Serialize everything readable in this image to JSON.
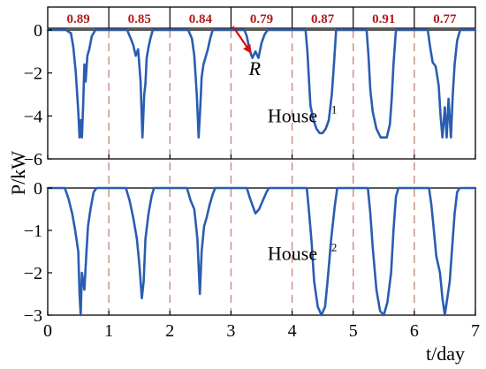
{
  "chart_data": {
    "type": "line",
    "ylabel": "P/kW",
    "xlabel": "t/day",
    "x_ticks": [
      0,
      1,
      2,
      3,
      4,
      5,
      6,
      7
    ],
    "xlim": [
      0,
      7
    ],
    "day_boundaries": [
      1,
      2,
      3,
      4,
      5,
      6
    ],
    "line_color": "#2a5db0",
    "divider_color": "#c98a80",
    "value_color": "#b21c1c",
    "day_values": [
      "0.89",
      "0.85",
      "0.84",
      "0.79",
      "0.87",
      "0.91",
      "0.77"
    ],
    "annotation": {
      "label": "R",
      "day": 3.35,
      "value": -1.2
    },
    "panels": [
      {
        "name": "House",
        "superscript": "1",
        "ylim": [
          -6,
          0
        ],
        "y_ticks": [
          0,
          -2,
          -4,
          -6
        ],
        "y_tick_labels": [
          "0",
          "−2",
          "−4",
          "−6"
        ],
        "label_pos": [
          3.6,
          -4.3
        ],
        "series": [
          [
            0.0,
            0
          ],
          [
            0.3,
            0
          ],
          [
            0.38,
            -0.15
          ],
          [
            0.42,
            -0.8
          ],
          [
            0.46,
            -2.0
          ],
          [
            0.5,
            -3.8
          ],
          [
            0.52,
            -5.0
          ],
          [
            0.54,
            -4.2
          ],
          [
            0.56,
            -5.0
          ],
          [
            0.58,
            -3.5
          ],
          [
            0.6,
            -1.6
          ],
          [
            0.62,
            -2.4
          ],
          [
            0.65,
            -1.2
          ],
          [
            0.68,
            -0.9
          ],
          [
            0.72,
            -0.3
          ],
          [
            0.78,
            0
          ],
          [
            1.3,
            0
          ],
          [
            1.36,
            -0.4
          ],
          [
            1.4,
            -0.7
          ],
          [
            1.44,
            -1.2
          ],
          [
            1.48,
            -0.9
          ],
          [
            1.52,
            -2.4
          ],
          [
            1.55,
            -5.0
          ],
          [
            1.58,
            -3.0
          ],
          [
            1.6,
            -2.5
          ],
          [
            1.62,
            -1.3
          ],
          [
            1.65,
            -0.8
          ],
          [
            1.68,
            -0.4
          ],
          [
            1.72,
            0
          ],
          [
            2.3,
            0
          ],
          [
            2.36,
            -0.4
          ],
          [
            2.4,
            -1.2
          ],
          [
            2.44,
            -3.0
          ],
          [
            2.47,
            -5.0
          ],
          [
            2.5,
            -3.4
          ],
          [
            2.52,
            -2.2
          ],
          [
            2.55,
            -1.6
          ],
          [
            2.58,
            -1.3
          ],
          [
            2.62,
            -0.9
          ],
          [
            2.66,
            -0.4
          ],
          [
            2.7,
            0
          ],
          [
            3.22,
            0
          ],
          [
            3.26,
            -0.3
          ],
          [
            3.3,
            -0.9
          ],
          [
            3.35,
            -1.3
          ],
          [
            3.4,
            -1.0
          ],
          [
            3.45,
            -1.3
          ],
          [
            3.5,
            -0.6
          ],
          [
            3.55,
            -0.2
          ],
          [
            3.6,
            0
          ],
          [
            4.22,
            0
          ],
          [
            4.25,
            -1.0
          ],
          [
            4.28,
            -2.5
          ],
          [
            4.3,
            -3.5
          ],
          [
            4.35,
            -4.2
          ],
          [
            4.4,
            -4.6
          ],
          [
            4.45,
            -4.8
          ],
          [
            4.5,
            -4.8
          ],
          [
            4.55,
            -4.6
          ],
          [
            4.6,
            -4.2
          ],
          [
            4.65,
            -3.0
          ],
          [
            4.68,
            -1.8
          ],
          [
            4.72,
            0
          ],
          [
            5.22,
            0
          ],
          [
            5.25,
            -1.2
          ],
          [
            5.28,
            -2.8
          ],
          [
            5.32,
            -3.8
          ],
          [
            5.38,
            -4.6
          ],
          [
            5.45,
            -5.0
          ],
          [
            5.55,
            -5.0
          ],
          [
            5.6,
            -4.4
          ],
          [
            5.63,
            -3.2
          ],
          [
            5.66,
            -1.6
          ],
          [
            5.7,
            0
          ],
          [
            6.22,
            0
          ],
          [
            6.26,
            -0.8
          ],
          [
            6.3,
            -1.5
          ],
          [
            6.35,
            -1.7
          ],
          [
            6.4,
            -2.6
          ],
          [
            6.43,
            -4.0
          ],
          [
            6.46,
            -5.0
          ],
          [
            6.5,
            -3.6
          ],
          [
            6.53,
            -5.0
          ],
          [
            6.56,
            -3.2
          ],
          [
            6.6,
            -5.0
          ],
          [
            6.63,
            -3.0
          ],
          [
            6.66,
            -1.6
          ],
          [
            6.7,
            -0.5
          ],
          [
            6.75,
            0
          ],
          [
            7.0,
            0
          ]
        ]
      },
      {
        "name": "House",
        "superscript": "2",
        "ylim": [
          -3,
          0
        ],
        "y_ticks": [
          0,
          -1,
          -2,
          -3
        ],
        "y_tick_labels": [
          "0",
          "−1",
          "−2",
          "−3"
        ],
        "label_pos": [
          3.6,
          -1.7
        ],
        "series": [
          [
            0.0,
            0
          ],
          [
            0.28,
            0
          ],
          [
            0.34,
            -0.25
          ],
          [
            0.4,
            -0.6
          ],
          [
            0.45,
            -1.0
          ],
          [
            0.5,
            -1.5
          ],
          [
            0.52,
            -2.5
          ],
          [
            0.54,
            -3.0
          ],
          [
            0.56,
            -2.0
          ],
          [
            0.6,
            -2.4
          ],
          [
            0.63,
            -1.6
          ],
          [
            0.66,
            -0.9
          ],
          [
            0.7,
            -0.5
          ],
          [
            0.75,
            -0.1
          ],
          [
            0.8,
            0
          ],
          [
            1.28,
            0
          ],
          [
            1.34,
            -0.3
          ],
          [
            1.4,
            -0.7
          ],
          [
            1.46,
            -1.2
          ],
          [
            1.5,
            -1.8
          ],
          [
            1.54,
            -2.6
          ],
          [
            1.57,
            -2.2
          ],
          [
            1.6,
            -1.2
          ],
          [
            1.65,
            -0.6
          ],
          [
            1.7,
            -0.2
          ],
          [
            1.74,
            0
          ],
          [
            2.28,
            0
          ],
          [
            2.34,
            -0.3
          ],
          [
            2.4,
            -0.5
          ],
          [
            2.45,
            -1.2
          ],
          [
            2.49,
            -2.5
          ],
          [
            2.52,
            -1.5
          ],
          [
            2.56,
            -0.9
          ],
          [
            2.6,
            -0.7
          ],
          [
            2.65,
            -0.4
          ],
          [
            2.7,
            -0.15
          ],
          [
            2.74,
            0
          ],
          [
            3.26,
            0
          ],
          [
            3.3,
            -0.2
          ],
          [
            3.35,
            -0.4
          ],
          [
            3.4,
            -0.6
          ],
          [
            3.46,
            -0.5
          ],
          [
            3.52,
            -0.3
          ],
          [
            3.58,
            -0.1
          ],
          [
            3.62,
            0
          ],
          [
            4.24,
            0
          ],
          [
            4.28,
            -0.6
          ],
          [
            4.32,
            -1.3
          ],
          [
            4.36,
            -2.2
          ],
          [
            4.42,
            -2.8
          ],
          [
            4.48,
            -3.0
          ],
          [
            4.54,
            -2.8
          ],
          [
            4.58,
            -2.2
          ],
          [
            4.64,
            -1.2
          ],
          [
            4.7,
            -0.4
          ],
          [
            4.74,
            0
          ],
          [
            5.24,
            0
          ],
          [
            5.28,
            -0.6
          ],
          [
            5.32,
            -1.4
          ],
          [
            5.38,
            -2.4
          ],
          [
            5.44,
            -2.9
          ],
          [
            5.5,
            -3.0
          ],
          [
            5.56,
            -2.7
          ],
          [
            5.62,
            -2.0
          ],
          [
            5.66,
            -1.0
          ],
          [
            5.7,
            -0.2
          ],
          [
            5.74,
            0
          ],
          [
            6.24,
            0
          ],
          [
            6.28,
            -0.4
          ],
          [
            6.32,
            -1.0
          ],
          [
            6.36,
            -1.6
          ],
          [
            6.42,
            -2.0
          ],
          [
            6.46,
            -2.6
          ],
          [
            6.5,
            -3.0
          ],
          [
            6.54,
            -2.6
          ],
          [
            6.58,
            -2.2
          ],
          [
            6.62,
            -1.4
          ],
          [
            6.66,
            -0.6
          ],
          [
            6.7,
            -0.1
          ],
          [
            6.74,
            0
          ],
          [
            7.0,
            0
          ]
        ]
      }
    ]
  }
}
